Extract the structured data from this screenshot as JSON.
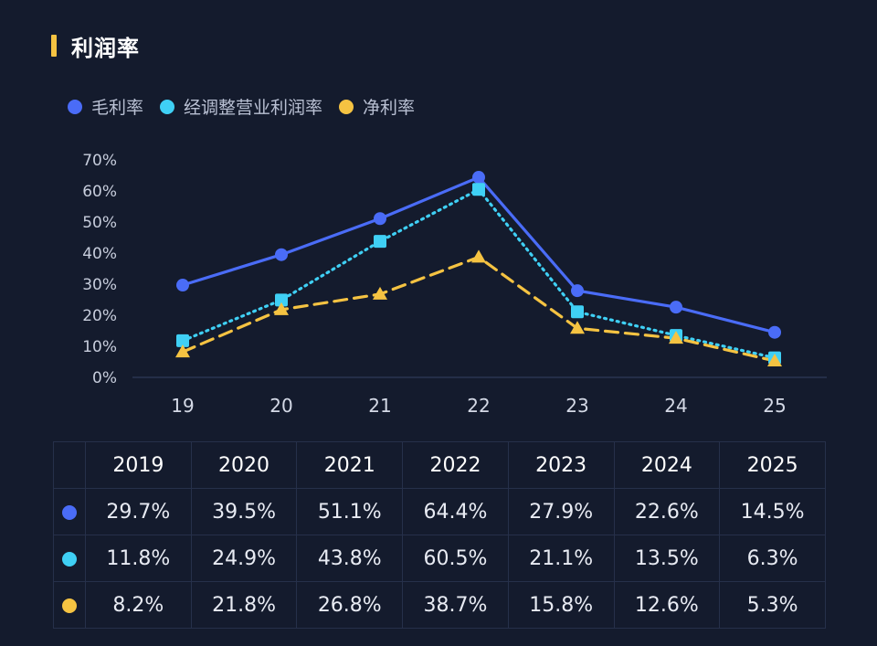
{
  "title": "利润率",
  "colors": {
    "gross": "#4a6cf7",
    "adjusted": "#3fd0f5",
    "net": "#f5c342"
  },
  "legend": [
    {
      "label": "毛利率",
      "color": "#4a6cf7"
    },
    {
      "label": "经调整营业利润率",
      "color": "#3fd0f5"
    },
    {
      "label": "净利率",
      "color": "#f5c342"
    }
  ],
  "chart_data": {
    "type": "line",
    "title": "利润率",
    "x": [
      "19",
      "20",
      "21",
      "22",
      "23",
      "24",
      "25"
    ],
    "ylim": [
      0,
      70
    ],
    "yticks": [
      "0%",
      "10%",
      "20%",
      "30%",
      "40%",
      "50%",
      "60%",
      "70%"
    ],
    "grid": false,
    "legend_position": "top-left",
    "series": [
      {
        "name": "毛利率",
        "values": [
          29.7,
          39.5,
          51.1,
          64.4,
          27.9,
          22.6,
          14.5
        ],
        "style": "solid",
        "marker": "circle",
        "color": "#4a6cf7"
      },
      {
        "name": "经调整营业利润率",
        "values": [
          11.8,
          24.9,
          43.8,
          60.5,
          21.1,
          13.5,
          6.3
        ],
        "style": "dotted",
        "marker": "square",
        "color": "#3fd0f5"
      },
      {
        "name": "净利率",
        "values": [
          8.2,
          21.8,
          26.8,
          38.7,
          15.8,
          12.6,
          5.3
        ],
        "style": "dashed",
        "marker": "triangle",
        "color": "#f5c342"
      }
    ]
  },
  "table": {
    "years": [
      "2019",
      "2020",
      "2021",
      "2022",
      "2023",
      "2024",
      "2025"
    ],
    "rows": [
      {
        "color": "#4a6cf7",
        "values": [
          "29.7%",
          "39.5%",
          "51.1%",
          "64.4%",
          "27.9%",
          "22.6%",
          "14.5%"
        ]
      },
      {
        "color": "#3fd0f5",
        "values": [
          "11.8%",
          "24.9%",
          "43.8%",
          "60.5%",
          "21.1%",
          "13.5%",
          "6.3%"
        ]
      },
      {
        "color": "#f5c342",
        "values": [
          "8.2%",
          "21.8%",
          "26.8%",
          "38.7%",
          "15.8%",
          "12.6%",
          "5.3%"
        ]
      }
    ]
  }
}
